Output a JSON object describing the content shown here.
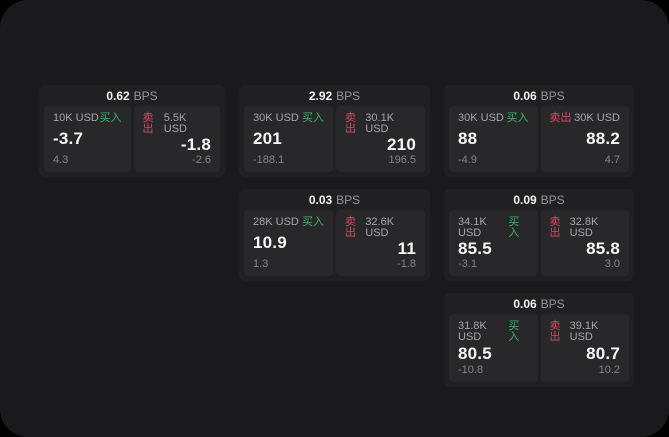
{
  "labels": {
    "bps_unit": "BPS",
    "buy": "买入",
    "sell": "卖出"
  },
  "colors": {
    "outer_background": "#000000",
    "page_background": "#1a1a1c",
    "card_background": "#202023",
    "panel_background": "#28282b",
    "buy_accent": "#3cb46e",
    "sell_accent": "#cf4a63",
    "text_primary": "#f6f6f7",
    "text_secondary": "#a7a7ab",
    "text_dim": "#85858a"
  },
  "cards": [
    {
      "spread_bps": "0.62",
      "buy": {
        "size": "10K USD",
        "price": "-3.7",
        "change": "4.3"
      },
      "sell": {
        "size": "5.5K USD",
        "price": "-1.8",
        "change": "-2.6"
      }
    },
    {
      "spread_bps": "2.92",
      "buy": {
        "size": "30K USD",
        "price": "201",
        "change": "-188.1"
      },
      "sell": {
        "size": "30.1K USD",
        "price": "210",
        "change": "196.5"
      }
    },
    {
      "spread_bps": "0.06",
      "buy": {
        "size": "30K USD",
        "price": "88",
        "change": "-4.9"
      },
      "sell": {
        "size": "30K USD",
        "price": "88.2",
        "change": "4.7"
      }
    },
    {
      "spread_bps": "0.03",
      "buy": {
        "size": "28K USD",
        "price": "10.9",
        "change": "1.3"
      },
      "sell": {
        "size": "32.6K USD",
        "price": "11",
        "change": "-1.8"
      }
    },
    {
      "spread_bps": "0.09",
      "buy": {
        "size": "34.1K USD",
        "price": "85.5",
        "change": "-3.1"
      },
      "sell": {
        "size": "32.8K USD",
        "price": "85.8",
        "change": "3.0"
      }
    },
    {
      "spread_bps": "0.06",
      "buy": {
        "size": "31.8K USD",
        "price": "80.5",
        "change": "-10.8"
      },
      "sell": {
        "size": "39.1K USD",
        "price": "80.7",
        "change": "10.2"
      }
    }
  ]
}
